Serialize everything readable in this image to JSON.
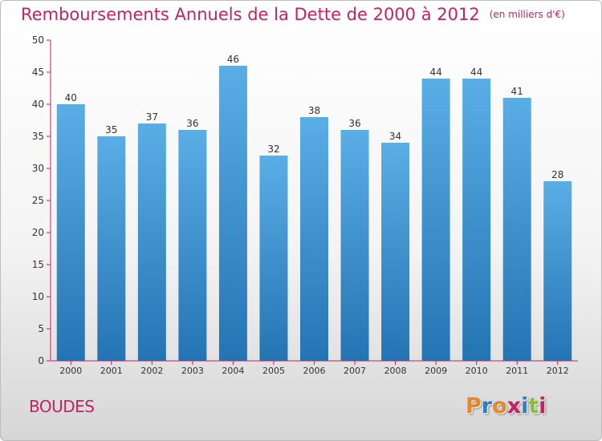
{
  "header": {
    "title": "Remboursements Annuels de la Dette de 2000 à 2012",
    "unit": "(en milliers d'€)"
  },
  "footer": {
    "commune": "BOUDES",
    "brand": "Proxiti"
  },
  "colors": {
    "title": "#c4235f",
    "axis": "#c4235f",
    "bar_top": "#5aaee6",
    "bar_bottom": "#2474b3",
    "brand_letters": [
      "#e8862a",
      "#2f7fc1",
      "#e8862a",
      "#c4235f",
      "#2f7fc1",
      "#8bbf3a",
      "#c4235f"
    ]
  },
  "chart_data": {
    "type": "bar",
    "title": "Remboursements Annuels de la Dette de 2000 à 2012",
    "subtitle": "(en milliers d'€)",
    "xlabel": "",
    "ylabel": "",
    "categories": [
      "2000",
      "2001",
      "2002",
      "2003",
      "2004",
      "2005",
      "2006",
      "2007",
      "2008",
      "2009",
      "2010",
      "2011",
      "2012"
    ],
    "values": [
      40,
      35,
      37,
      36,
      46,
      32,
      38,
      36,
      34,
      44,
      44,
      41,
      28
    ],
    "ylim": [
      0,
      50
    ],
    "yticks": [
      0,
      5,
      10,
      15,
      20,
      25,
      30,
      35,
      40,
      45,
      50
    ],
    "data_labels": true,
    "grid": false,
    "legend": "none"
  }
}
